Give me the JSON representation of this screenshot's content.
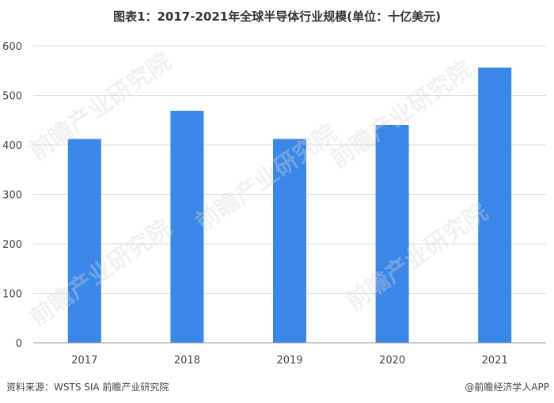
{
  "chart_data": {
    "type": "bar",
    "title": "图表1：2017-2021年全球半导体行业规模(单位：十亿美元)",
    "categories": [
      "2017",
      "2018",
      "2019",
      "2020",
      "2021"
    ],
    "values": [
      412,
      469,
      412,
      440,
      556
    ],
    "ylim": [
      0,
      600
    ],
    "yticks": [
      0,
      100,
      200,
      300,
      400,
      500,
      600
    ],
    "grid": true,
    "bar_color": "#3A87E8"
  },
  "footer": {
    "source": "资料来源：WSTS SIA 前瞻产业研究院",
    "credit": "@前瞻经济学人APP"
  },
  "watermark": {
    "text": "前瞻产业研究院"
  }
}
